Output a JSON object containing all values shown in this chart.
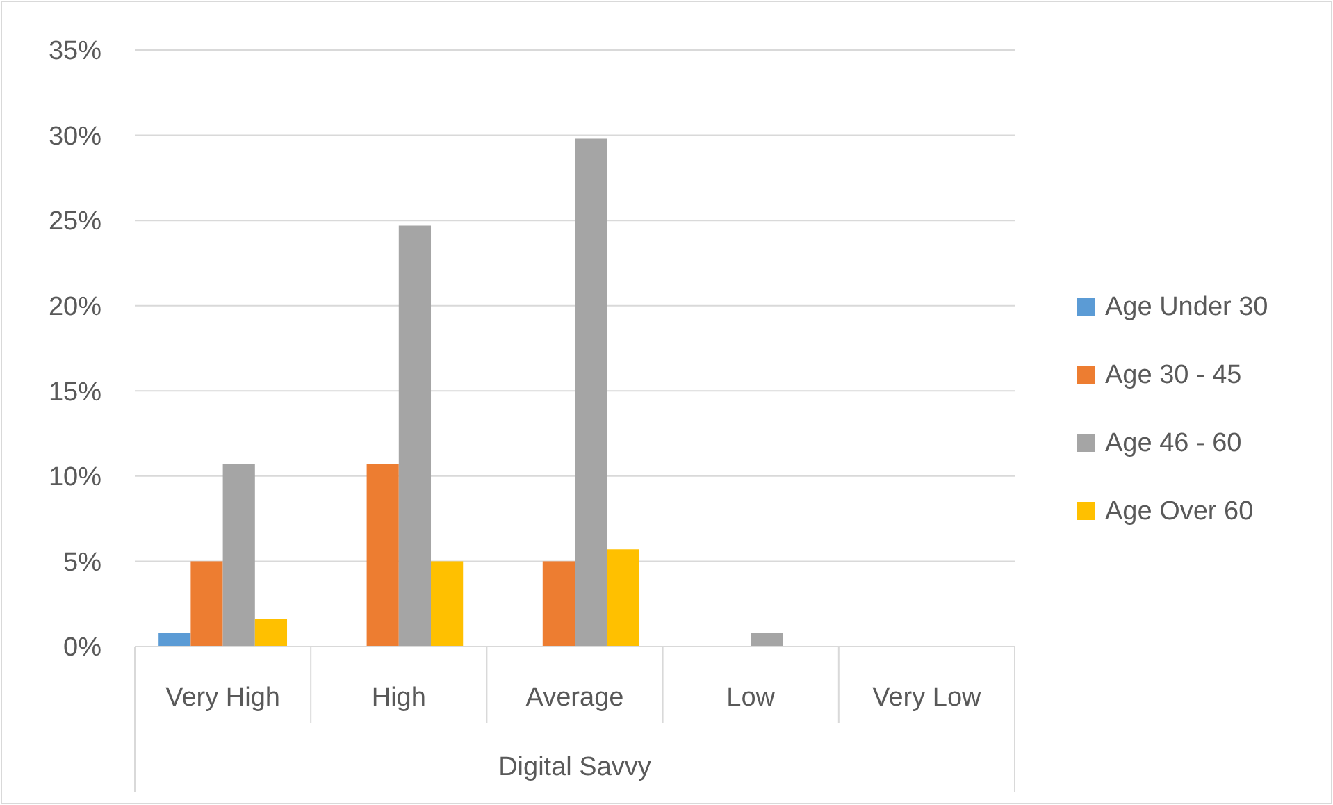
{
  "chart_data": {
    "type": "bar",
    "xlabel": "Digital Savvy",
    "categories": [
      "Very High",
      "High",
      "Average",
      "Low",
      "Very Low"
    ],
    "series": [
      {
        "name": "Age Under 30",
        "color": "#5b9bd5",
        "values": [
          0.8,
          0,
          0,
          0,
          0
        ]
      },
      {
        "name": "Age 30 - 45",
        "color": "#ed7d31",
        "values": [
          5,
          10.7,
          5,
          0,
          0
        ]
      },
      {
        "name": "Age 46 - 60",
        "color": "#a5a5a5",
        "values": [
          10.7,
          24.7,
          29.8,
          0.8,
          0
        ]
      },
      {
        "name": "Age Over 60",
        "color": "#ffc000",
        "values": [
          1.6,
          5,
          5.7,
          0,
          0
        ]
      }
    ],
    "ylim": [
      0,
      35
    ],
    "yticks": [
      {
        "value": 0,
        "label": "0%"
      },
      {
        "value": 5,
        "label": "5%"
      },
      {
        "value": 10,
        "label": "10%"
      },
      {
        "value": 15,
        "label": "15%"
      },
      {
        "value": 20,
        "label": "20%"
      },
      {
        "value": 25,
        "label": "25%"
      },
      {
        "value": 30,
        "label": "30%"
      },
      {
        "value": 35,
        "label": "35%"
      }
    ],
    "grid": "y",
    "legend": "right"
  }
}
